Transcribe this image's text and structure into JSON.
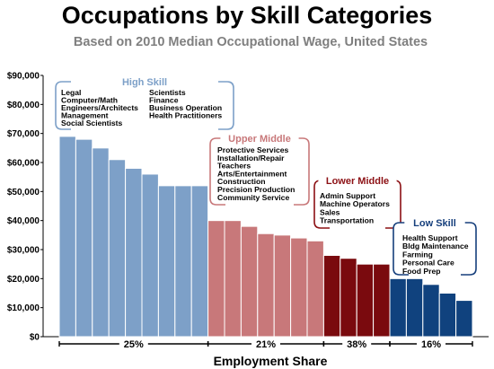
{
  "chart_data": {
    "type": "bar",
    "title": "Occupations by Skill Categories",
    "subtitle": "Based on 2010 Median Occupational Wage, United States",
    "xlabel": "Employment Share",
    "ylabel": "",
    "ylim": [
      0,
      90000
    ],
    "yticks": [
      "$0",
      "$10,000",
      "$20,000",
      "$30,000",
      "$40,000",
      "$50,000",
      "$60,000",
      "$70,000",
      "$80,000",
      "$90,000"
    ],
    "grid": false,
    "groups": [
      {
        "name": "High Skill",
        "color": "#7da0c8",
        "title_color": "#7da0c8",
        "share": "25%",
        "values": [
          69000,
          68000,
          65000,
          61000,
          58000,
          56000,
          52000,
          52000,
          52000
        ],
        "items_col1": [
          "Legal",
          "Computer/Math",
          "Engineers/Architects",
          "Management",
          "Social Scientists"
        ],
        "items_col2": [
          "Scientists",
          "Finance",
          "Business Operation",
          "Health Practitioners"
        ]
      },
      {
        "name": "Upper Middle",
        "color": "#c8787a",
        "title_color": "#c8787a",
        "share": "21%",
        "values": [
          40000,
          40000,
          38000,
          35500,
          35000,
          34000,
          33000
        ],
        "items_col1": [
          "Protective Services",
          "Installation/Repair",
          "Teachers",
          "Arts/Entertainment",
          "Construction",
          "Precision Production",
          "Community Service"
        ]
      },
      {
        "name": "Lower Middle",
        "color": "#7a0a0e",
        "title_color": "#8c1014",
        "share": "38%",
        "values": [
          28000,
          27000,
          25000,
          25000
        ],
        "items_col1": [
          "Admin Support",
          "Machine Operators",
          "Sales",
          "Transportation"
        ]
      },
      {
        "name": "Low Skill",
        "color": "#10427e",
        "title_color": "#163f7c",
        "share": "16%",
        "values": [
          20000,
          20000,
          18000,
          15000,
          12500
        ],
        "items_col1": [
          "Health Support",
          "Bldg Maintenance",
          "Farming",
          "Personal Care",
          "Food Prep"
        ]
      }
    ]
  }
}
